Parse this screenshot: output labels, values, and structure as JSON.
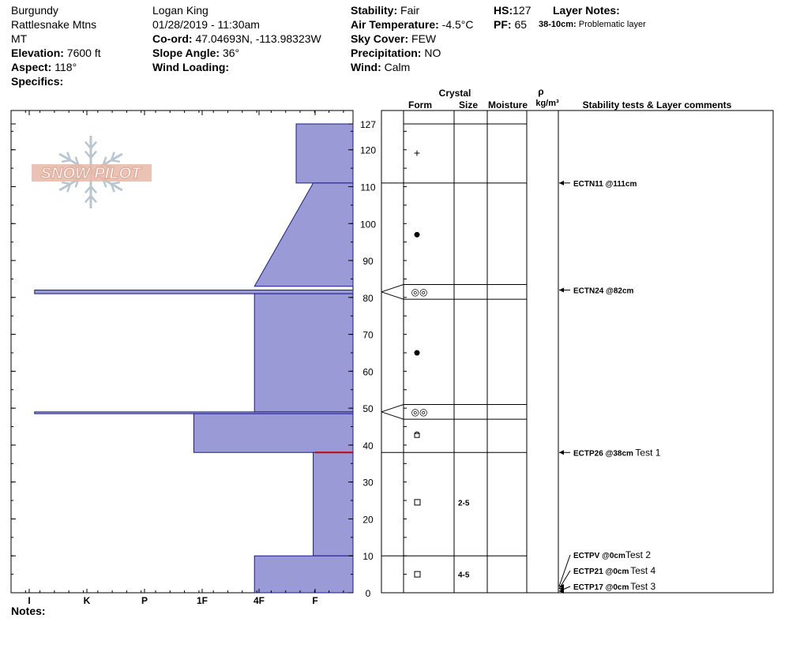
{
  "header": {
    "col1": {
      "location": "Burgundy",
      "range": "Rattlesnake Mtns",
      "state": "MT",
      "elevation_label": "Elevation:",
      "elevation_value": "7600 ft",
      "aspect_label": "Aspect:",
      "aspect_value": "118°",
      "specifics_label": "Specifics:"
    },
    "col2": {
      "observer": "Logan King",
      "datetime": "01/28/2019 - 11:30am",
      "coord_label": "Co-ord:",
      "coord_value": "47.04693N, -113.98323W",
      "slope_label": "Slope Angle:",
      "slope_value": "36°",
      "wind_loading_label": "Wind Loading:"
    },
    "col3": {
      "stability_label": "Stability:",
      "stability_value": "Fair",
      "airtemp_label": "Air Temperature:",
      "airtemp_value": "-4.5°C",
      "sky_label": "Sky Cover:",
      "sky_value": "FEW",
      "precip_label": "Precipitation:",
      "precip_value": "NO",
      "wind_label": "Wind:",
      "wind_value": "Calm"
    },
    "col4": {
      "hs_label": "HS:",
      "hs_value": "127",
      "pf_label": "PF:",
      "pf_value": "65"
    },
    "col5": {
      "layer_notes_label": "Layer Notes:",
      "layer_note_range": "38-10cm:",
      "layer_note_text": "Problematic layer"
    }
  },
  "logo_text": "SNOW PILOT",
  "table_headers": {
    "crystal": "Crystal",
    "form": "Form",
    "size": "Size",
    "moisture": "Moisture",
    "rho": "ρ",
    "density_unit": "kg/m³",
    "stability": "Stability tests & Layer comments"
  },
  "notes_label": "Notes:",
  "chart_data": {
    "type": "area",
    "title": "",
    "xlabel": "",
    "ylabel": "",
    "x_categories": [
      "I",
      "K",
      "P",
      "1F",
      "4F",
      "F"
    ],
    "ylim": [
      0,
      127
    ],
    "y_ticks": [
      "0",
      "10",
      "20",
      "30",
      "40",
      "50",
      "60",
      "70",
      "80",
      "90",
      "100",
      "110",
      "120",
      "127"
    ],
    "hardness_layers": [
      {
        "top": 127,
        "bottom": 111,
        "hardness_top": 1.5,
        "hardness_bottom": 1.5
      },
      {
        "top": 111,
        "bottom": 83,
        "hardness_top": 1.05,
        "hardness_bottom": 2.6
      },
      {
        "top": 82,
        "bottom": 81,
        "hardness_top": 8.4,
        "hardness_bottom": 8.4
      },
      {
        "top": 81,
        "bottom": 49,
        "hardness_top": 2.6,
        "hardness_bottom": 2.6
      },
      {
        "top": 49,
        "bottom": 48.5,
        "hardness_top": 8.4,
        "hardness_bottom": 8.4
      },
      {
        "top": 48.5,
        "bottom": 38,
        "hardness_top": 4.2,
        "hardness_bottom": 4.2
      },
      {
        "top": 38,
        "bottom": 10,
        "hardness_top": 1.05,
        "hardness_bottom": 1.05
      },
      {
        "top": 10,
        "bottom": 0,
        "hardness_top": 2.6,
        "hardness_bottom": 2.6
      }
    ],
    "red_marker_height": 38,
    "layer_boundaries": [
      127,
      111,
      83.5,
      79.5,
      51,
      47,
      38,
      10
    ],
    "layers": [
      {
        "center": 119,
        "form": "+",
        "size": ""
      },
      {
        "center": 97,
        "form": "●",
        "size": ""
      },
      {
        "center": 81.5,
        "form": "◎◎",
        "size": ""
      },
      {
        "center": 65,
        "form": "●",
        "size": ""
      },
      {
        "center": 49,
        "form": "◎◎",
        "size": ""
      },
      {
        "center": 42.5,
        "form": "hollow-square",
        "size": ""
      },
      {
        "center": 24.5,
        "form": "□",
        "size": "2-5"
      },
      {
        "center": 5,
        "form": "□",
        "size": "4-5"
      }
    ],
    "tests": [
      {
        "height": 111,
        "label": "ECTN11 @111cm",
        "comment": ""
      },
      {
        "height": 82,
        "label": "ECTN24 @82cm",
        "comment": ""
      },
      {
        "height": 38,
        "label": "ECTP26 @38cm",
        "comment": "Test 1"
      },
      {
        "height": 0,
        "label": "ECTPV @0cm",
        "comment": "Test 2"
      },
      {
        "height": 0,
        "label": "ECTP21 @0cm",
        "comment": "Test 4"
      },
      {
        "height": 0,
        "label": "ECTP17 @0cm",
        "comment": "Test 3"
      }
    ],
    "colors": {
      "fill": "#9a9ad6",
      "stroke": "#1a1a8c",
      "marker": "#cc0000",
      "logo": "#e8b8a8"
    }
  }
}
